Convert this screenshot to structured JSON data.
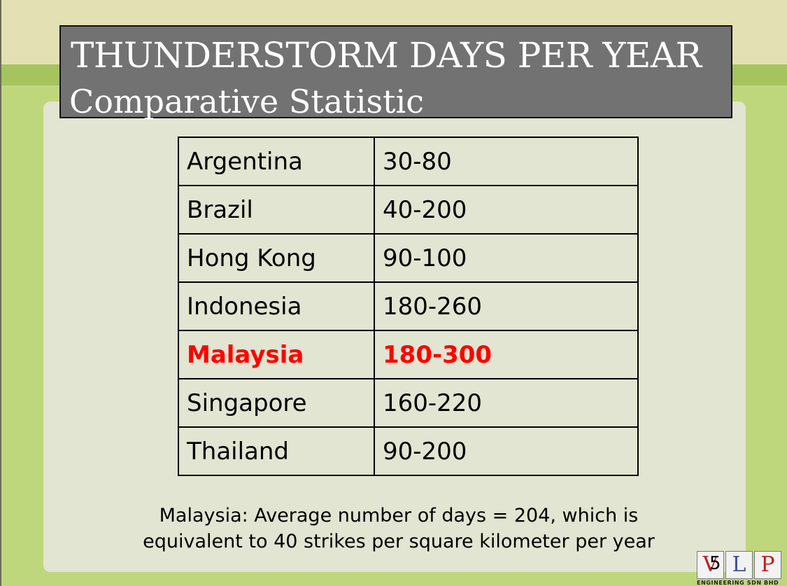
{
  "slide": {
    "title_line1": "THUNDERSTORM DAYS PER YEAR",
    "title_line2": "Comparative Statistic",
    "page_number": "5"
  },
  "table": {
    "rows": [
      {
        "country": "Argentina",
        "days": "30-80",
        "highlight": false
      },
      {
        "country": "Brazil",
        "days": "40-200",
        "highlight": false
      },
      {
        "country": "Hong Kong",
        "days": "90-100",
        "highlight": false
      },
      {
        "country": "Indonesia",
        "days": "180-260",
        "highlight": false
      },
      {
        "country": "Malaysia",
        "days": "180-300",
        "highlight": true
      },
      {
        "country": "Singapore",
        "days": "160-220",
        "highlight": false
      },
      {
        "country": "Thailand",
        "days": "90-200",
        "highlight": false
      }
    ],
    "highlight_color": "#ff0000"
  },
  "note": {
    "line1": "Malaysia: Average number of days = 204, which is",
    "line2": "equivalent to 40 strikes per square kilometer per year"
  },
  "logo": {
    "letters": [
      "V",
      "L",
      "P"
    ],
    "subtitle": "ENGINEERING SDN BHD"
  }
}
